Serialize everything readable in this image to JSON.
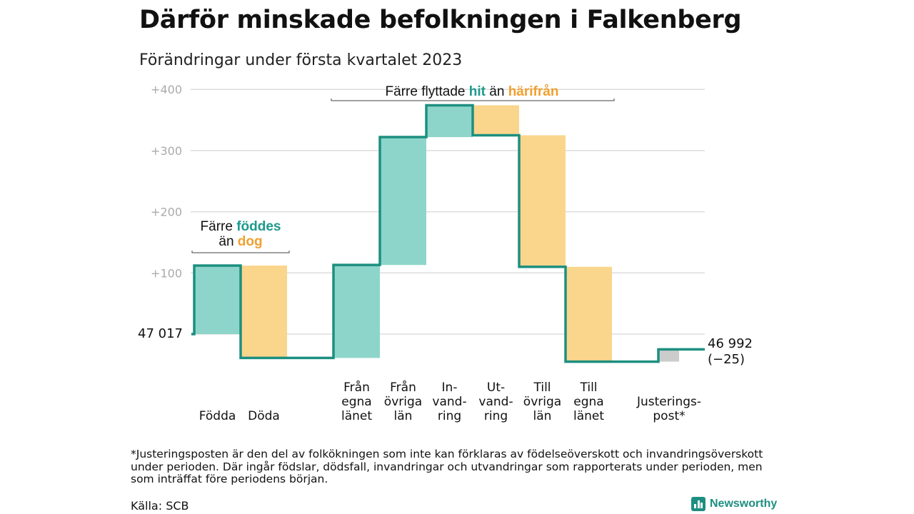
{
  "title": "Därför minskade befolkningen i Falkenberg",
  "subtitle": "Förändringar under första kvartalet 2023",
  "colors": {
    "increase": "#8dd5ca",
    "decrease": "#fad58c",
    "adjustment": "#cccccc",
    "line": "#1d8f80",
    "teal_text": "#1d9a8c",
    "orange_text": "#f0a030",
    "grid": "#dddddd"
  },
  "annotations": {
    "births": {
      "prefix": "Färre ",
      "hl1": "föddes",
      "mid": "än ",
      "hl2": "dog"
    },
    "moves": {
      "prefix": "Färre flyttade ",
      "hl1": "hit",
      "mid": " än ",
      "hl2": "härifrån"
    }
  },
  "chart_data": {
    "type": "waterfall",
    "start_label": "47 017",
    "end_label": "46 992",
    "end_change": "(−25)",
    "y_ticks": [
      "+100",
      "+200",
      "+300",
      "+400"
    ],
    "ylim": [
      -45,
      400
    ],
    "steps": [
      {
        "label": [
          "Födda"
        ],
        "value": 112,
        "kind": "increase"
      },
      {
        "label": [
          "Döda"
        ],
        "value": -151,
        "kind": "decrease"
      },
      {
        "label": [
          "Från",
          "egna",
          "länet"
        ],
        "value": 152,
        "kind": "increase"
      },
      {
        "label": [
          "Från",
          "övriga",
          "län"
        ],
        "value": 209,
        "kind": "increase"
      },
      {
        "label": [
          "In-",
          "vand-",
          "ring"
        ],
        "value": 52,
        "kind": "increase"
      },
      {
        "label": [
          "Ut-",
          "vand-",
          "ring"
        ],
        "value": -49,
        "kind": "decrease"
      },
      {
        "label": [
          "Till",
          "övriga",
          "län"
        ],
        "value": -215,
        "kind": "decrease"
      },
      {
        "label": [
          "Till",
          "egna",
          "länet"
        ],
        "value": -155,
        "kind": "decrease"
      },
      {
        "label": [
          "Justerings-",
          "post*"
        ],
        "value": 20,
        "kind": "adjustment"
      }
    ]
  },
  "footnote": "*Justeringsposten är den del av folkökningen som inte kan förklaras av födelseöverskott och invandringsöverskott under perioden. Där ingår födslar, dödsfall, invandringar och utvandringar som rapporterats under perioden, men som inträffat före periodens början.",
  "source": "Källa: SCB",
  "brand": {
    "name": "Newsworthy",
    "icon": "bar-chart-icon"
  }
}
